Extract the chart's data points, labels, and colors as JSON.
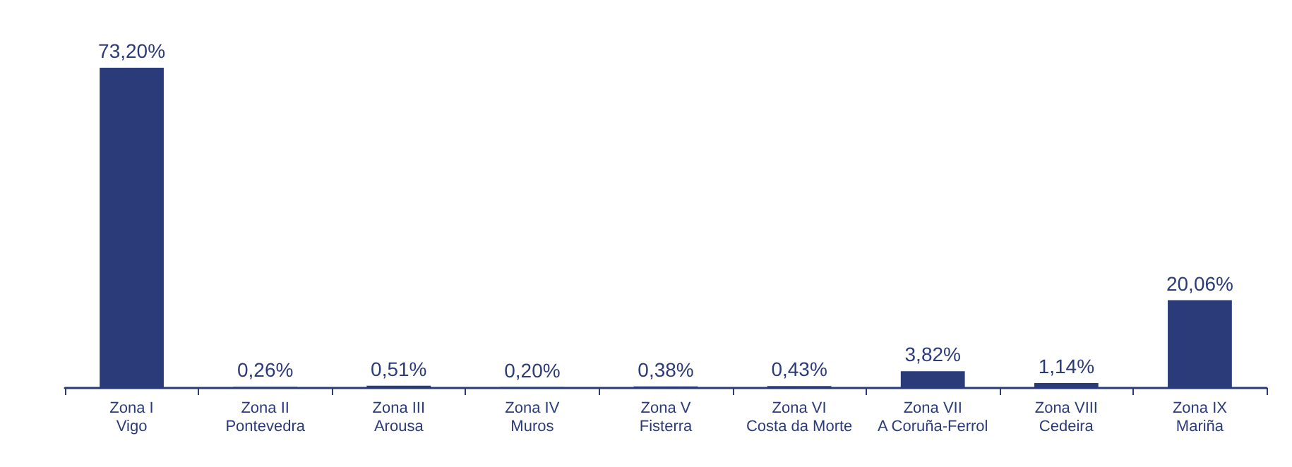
{
  "chart_data": {
    "type": "bar",
    "categories": [
      "Zona I\nVigo",
      "Zona II\nPontevedra",
      "Zona III\nArousa",
      "Zona IV\nMuros",
      "Zona V\nFisterra",
      "Zona VI\nCosta da Morte",
      "Zona VII\nA Coruña-Ferrol",
      "Zona VIII\nCedeira",
      "Zona IX\nMariña"
    ],
    "values": [
      73.2,
      0.26,
      0.51,
      0.2,
      0.38,
      0.43,
      3.82,
      1.14,
      20.06
    ],
    "value_labels": [
      "73,20%",
      "0,26%",
      "0,51%",
      "0,20%",
      "0,38%",
      "0,43%",
      "3,82%",
      "1,14%",
      "20,06%"
    ],
    "color": "#2b3a78",
    "ylim": [
      0,
      73.2
    ],
    "tick_labels": "x"
  }
}
